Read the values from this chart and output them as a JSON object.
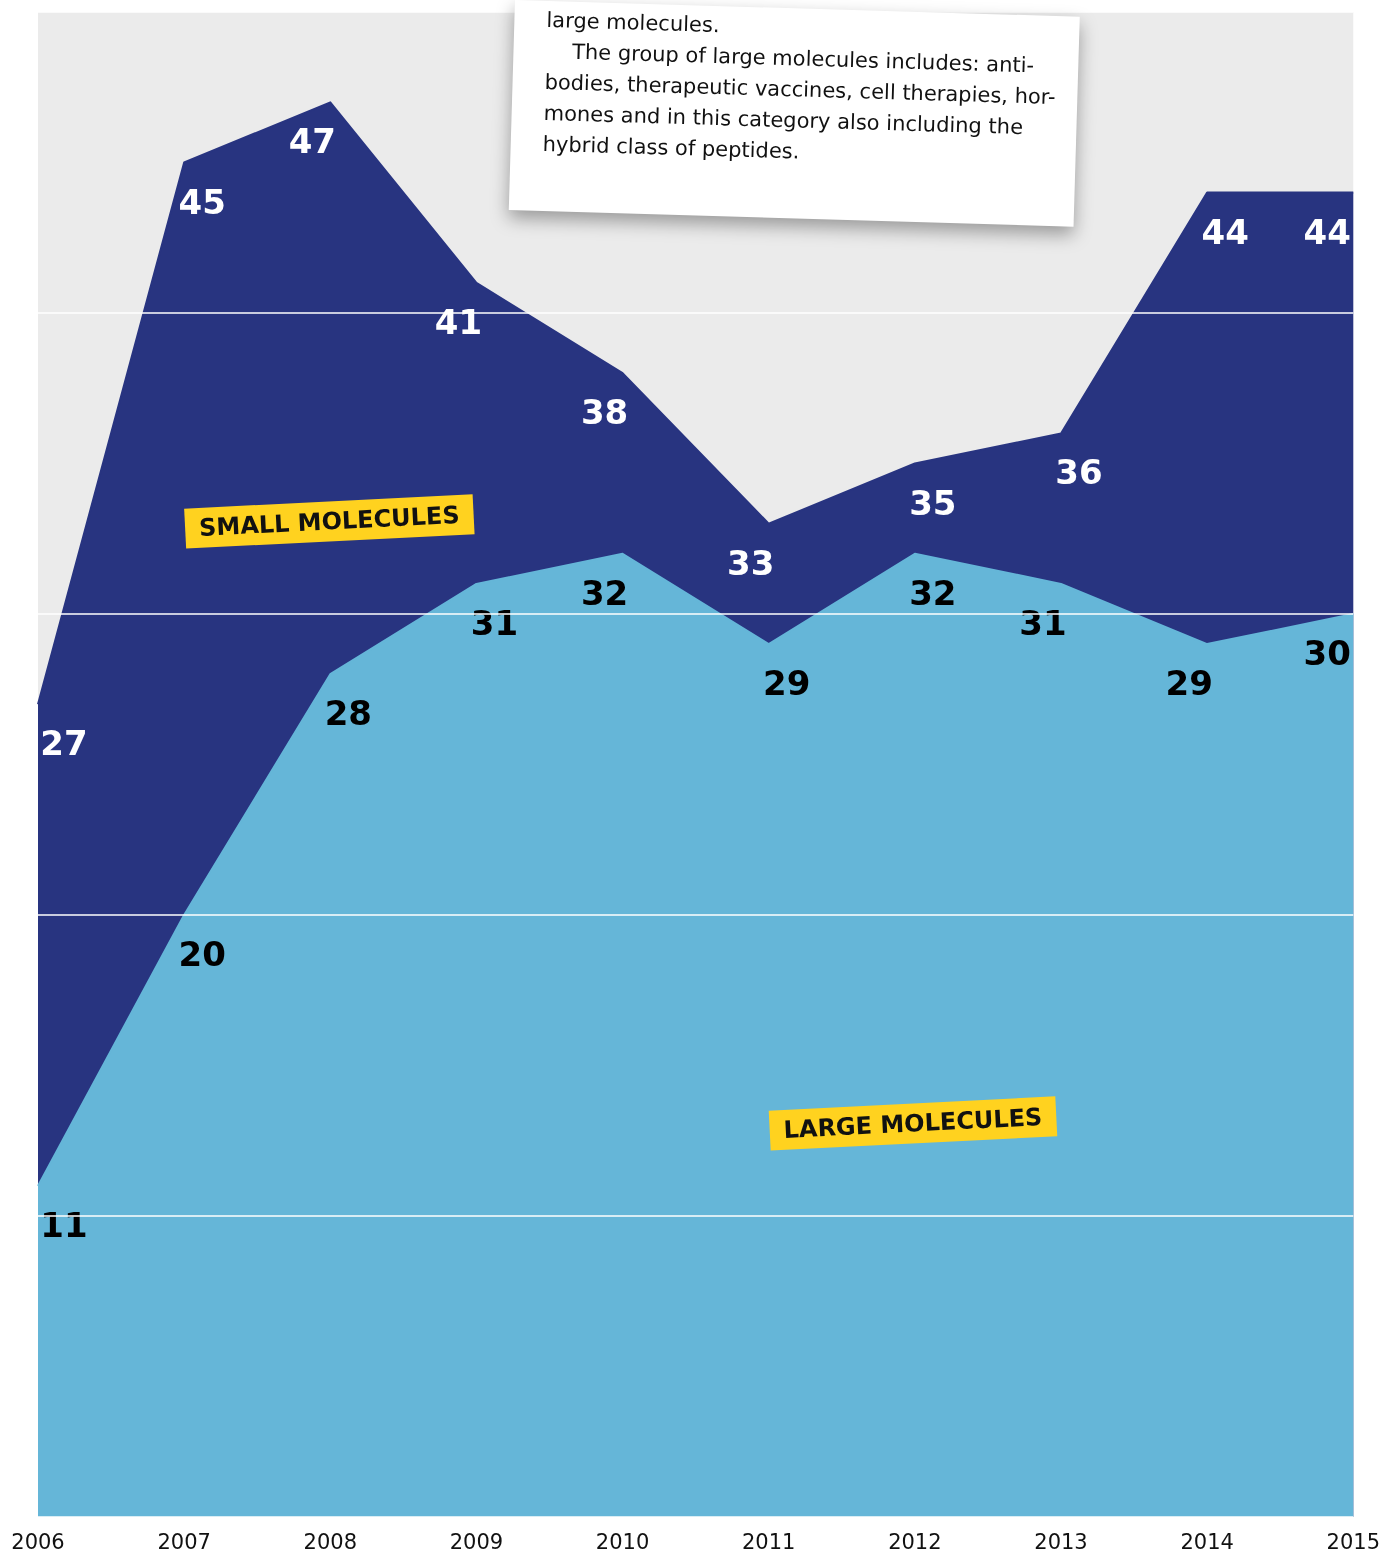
{
  "chart_data": {
    "type": "area",
    "categories": [
      "2006",
      "2007",
      "2008",
      "2009",
      "2010",
      "2011",
      "2012",
      "2013",
      "2014",
      "2015"
    ],
    "series": [
      {
        "name": "SMALL MOLECULES",
        "color": "#283480",
        "values": [
          27,
          45,
          47,
          41,
          38,
          33,
          35,
          36,
          44,
          44
        ]
      },
      {
        "name": "LARGE MOLECULES",
        "color": "#65b6d8",
        "values": [
          11,
          20,
          28,
          31,
          32,
          29,
          32,
          31,
          29,
          30
        ]
      }
    ],
    "tick_labels": "x",
    "grid": "y",
    "data_labels": true,
    "legend": false,
    "annotations": [
      "large molecules.\n    The group of large molecules includes: anti-\nbodies, therapeutic vaccines, cell therapies, hor-\nmones and in this category also including the\nhybrid class of peptides."
    ]
  }
}
